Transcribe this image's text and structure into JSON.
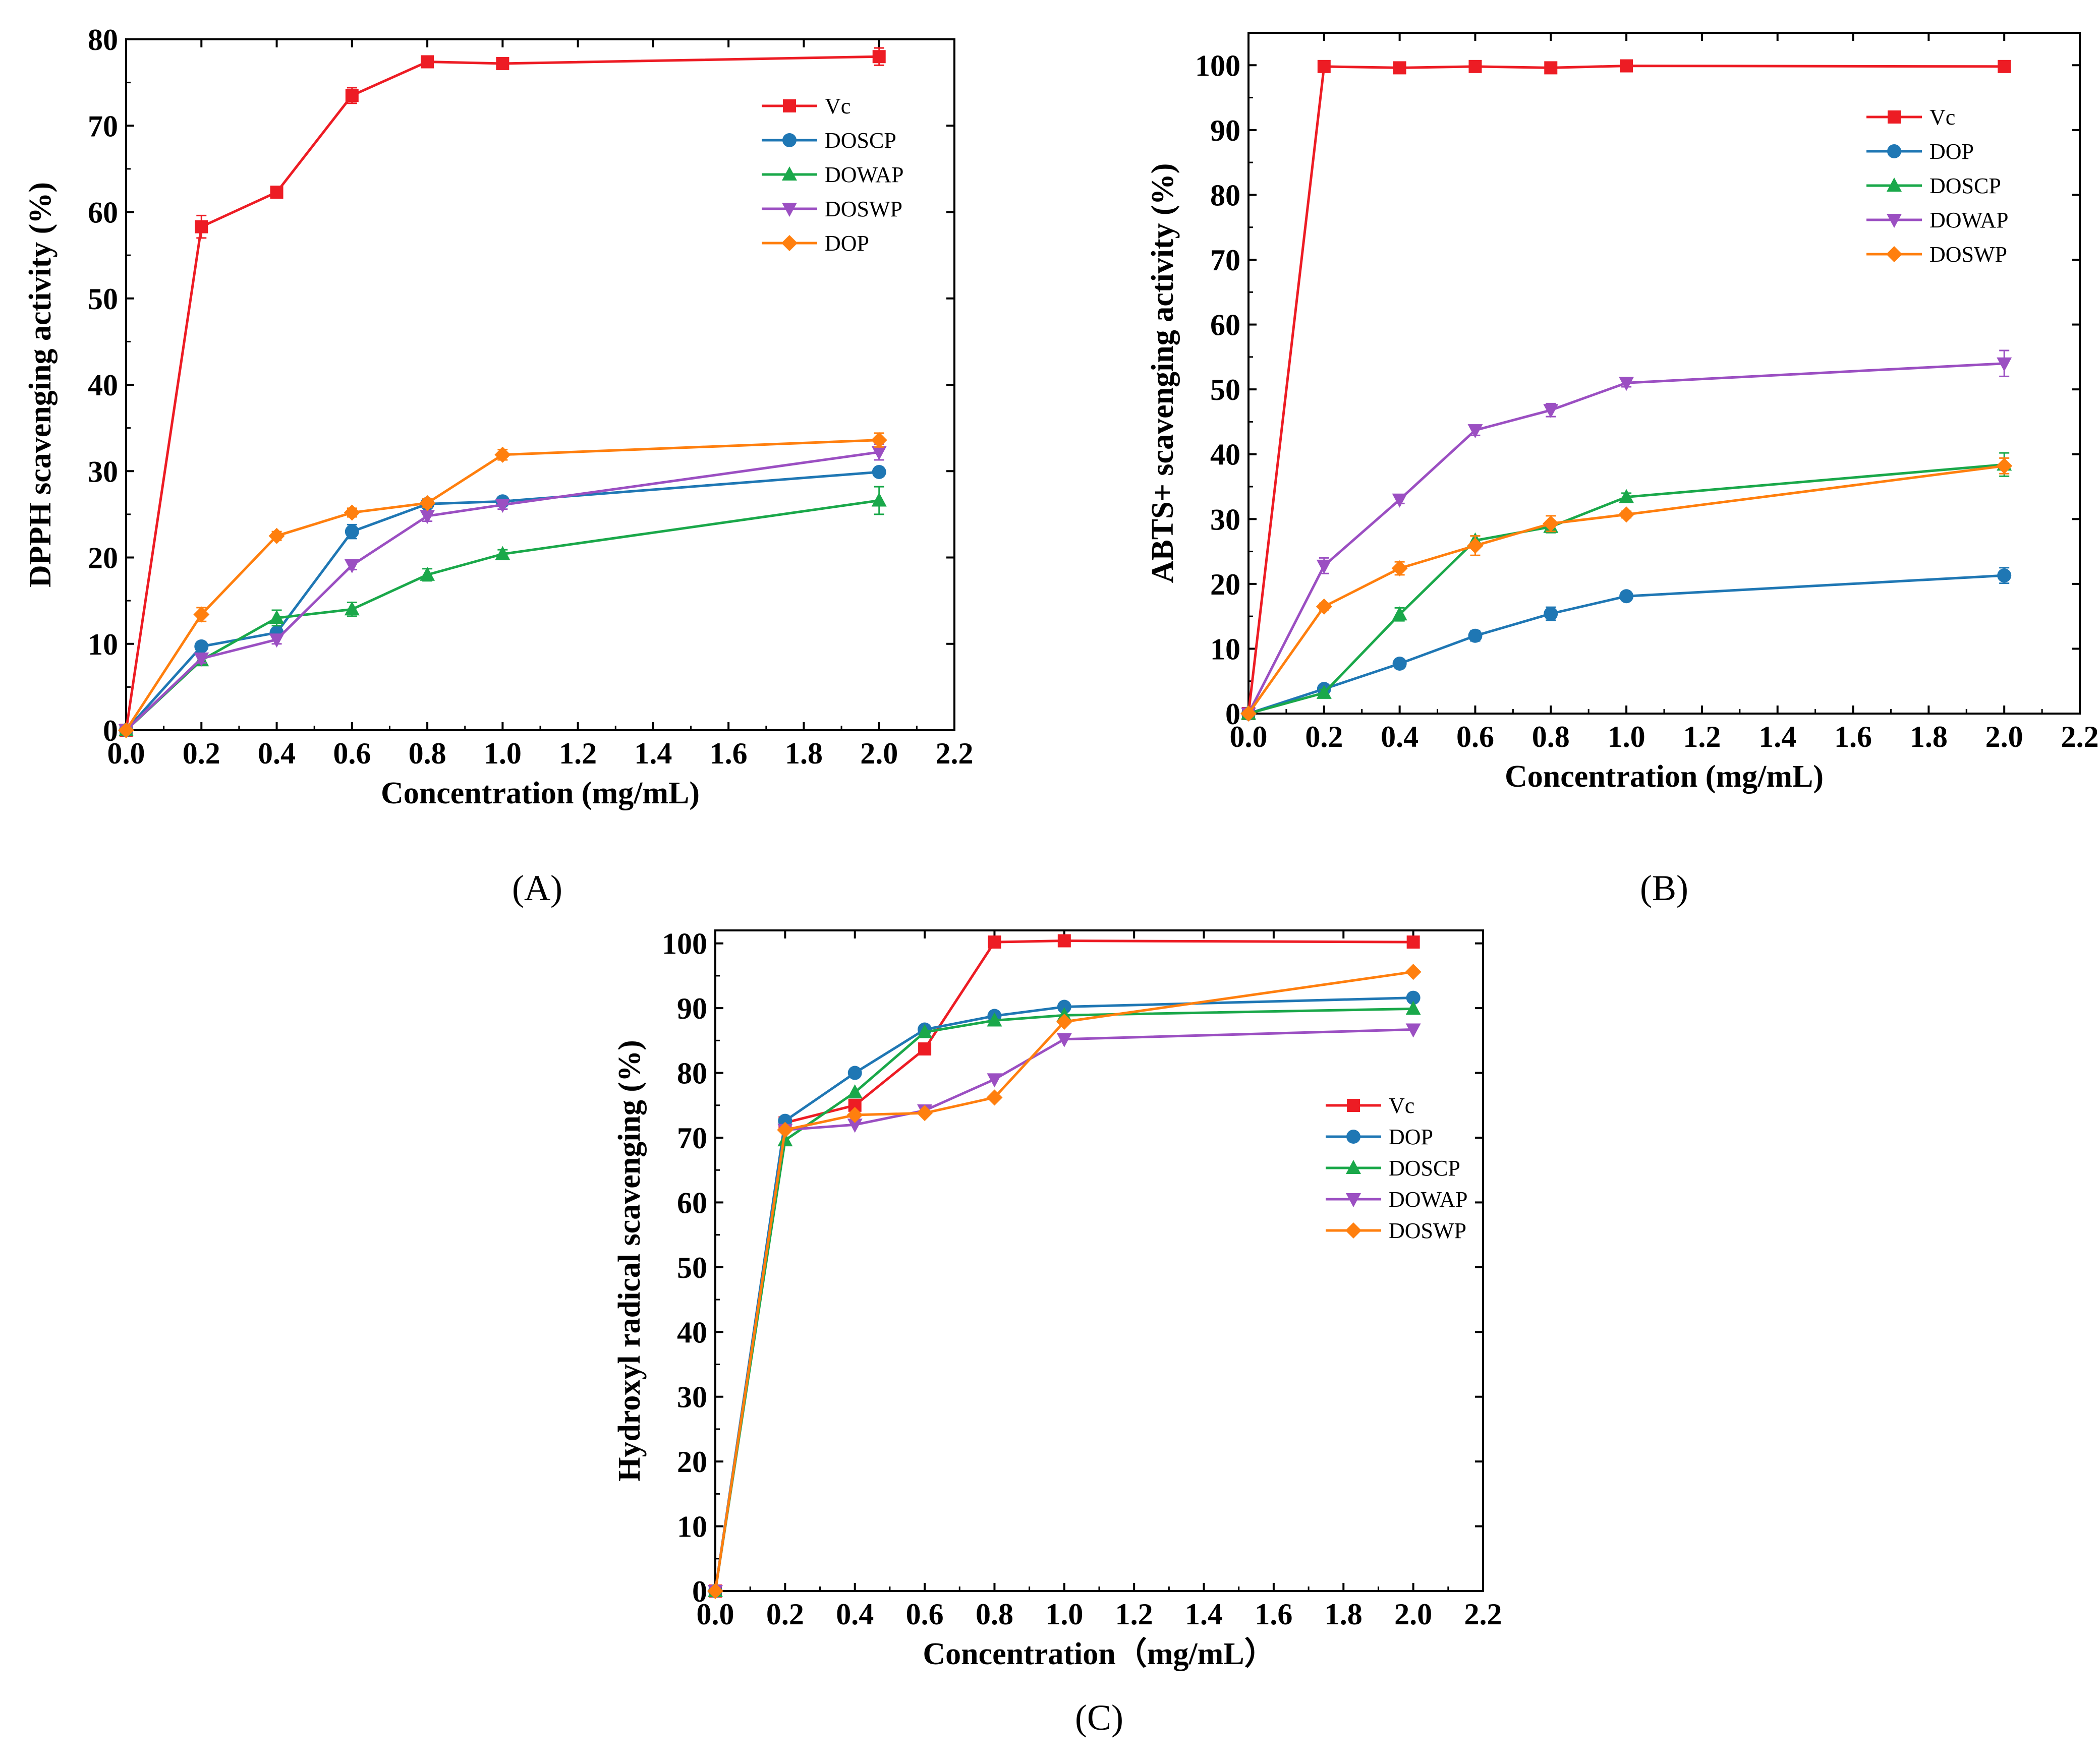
{
  "colors": {
    "red": "#ed1c24",
    "blue": "#1f77b4",
    "green": "#1aa84a",
    "purple": "#9b4fc2",
    "orange": "#ff7f0e"
  },
  "chart_data": [
    {
      "type": "line",
      "label": "(A)",
      "xlabel": "Concentration (mg/mL)",
      "ylabel": "DPPH scavenging activity (%)",
      "xlim": [
        0,
        2.2
      ],
      "ylim": [
        0,
        80
      ],
      "x_ticks": [
        "0.0",
        "0.2",
        "0.4",
        "0.6",
        "0.8",
        "1.0",
        "1.2",
        "1.4",
        "1.6",
        "1.8",
        "2.0",
        "2.2"
      ],
      "y_ticks": [
        "0",
        "10",
        "20",
        "30",
        "40",
        "50",
        "60",
        "70",
        "80"
      ],
      "x": [
        0,
        0.2,
        0.4,
        0.6,
        0.8,
        1.0,
        2.0
      ],
      "legend_position": "top-right",
      "series": [
        {
          "name": "Vc",
          "color": "red",
          "marker": "square",
          "values": [
            0,
            58.3,
            62.3,
            73.5,
            77.4,
            77.2,
            78.0
          ],
          "err": [
            0,
            1.3,
            0.4,
            0.9,
            0.3,
            0.3,
            1.0
          ]
        },
        {
          "name": "DOSCP",
          "color": "blue",
          "marker": "circle",
          "values": [
            0,
            9.7,
            11.3,
            23.0,
            26.2,
            26.5,
            29.9
          ],
          "err": [
            0,
            0.5,
            0.5,
            0.8,
            0.5,
            0.4,
            0.5
          ]
        },
        {
          "name": "DOWAP",
          "color": "green",
          "marker": "triangle-up",
          "values": [
            0,
            8.1,
            13.0,
            14.0,
            18.0,
            20.4,
            26.6
          ],
          "err": [
            0,
            0.5,
            0.9,
            0.8,
            0.7,
            0.5,
            1.6
          ]
        },
        {
          "name": "DOSWP",
          "color": "purple",
          "marker": "triangle-down",
          "values": [
            0,
            8.3,
            10.5,
            19.1,
            24.8,
            26.1,
            32.2
          ],
          "err": [
            0,
            0.5,
            0.5,
            0.5,
            0.6,
            0.5,
            0.9
          ]
        },
        {
          "name": "DOP",
          "color": "orange",
          "marker": "diamond",
          "values": [
            0,
            13.4,
            22.5,
            25.2,
            26.3,
            31.9,
            33.6
          ],
          "err": [
            0,
            0.8,
            0.5,
            0.5,
            0.5,
            0.6,
            0.8
          ]
        }
      ]
    },
    {
      "type": "line",
      "label": "(B)",
      "xlabel": "Concentration (mg/mL)",
      "ylabel": "ABTS+ scavenging activity (%)",
      "xlim": [
        0,
        2.2
      ],
      "ylim": [
        0,
        105
      ],
      "x_ticks": [
        "0.0",
        "0.2",
        "0.4",
        "0.6",
        "0.8",
        "1.0",
        "1.2",
        "1.4",
        "1.6",
        "1.8",
        "2.0",
        "2.2"
      ],
      "y_ticks": [
        "0",
        "10",
        "20",
        "30",
        "40",
        "50",
        "60",
        "70",
        "80",
        "90",
        "100"
      ],
      "x": [
        0,
        0.2,
        0.4,
        0.6,
        0.8,
        1.0,
        2.0
      ],
      "legend_position": "top-right",
      "series": [
        {
          "name": "Vc",
          "color": "red",
          "marker": "square",
          "values": [
            0,
            99.8,
            99.6,
            99.8,
            99.6,
            99.9,
            99.8
          ],
          "err": [
            0,
            0.8,
            0.3,
            0.3,
            0.3,
            0.2,
            0.3
          ]
        },
        {
          "name": "DOP",
          "color": "blue",
          "marker": "circle",
          "values": [
            0,
            3.8,
            7.7,
            12.0,
            15.4,
            18.1,
            21.3
          ],
          "err": [
            0,
            0.6,
            0.5,
            0.8,
            1.0,
            0.5,
            1.2
          ]
        },
        {
          "name": "DOSCP",
          "color": "green",
          "marker": "triangle-up",
          "values": [
            0,
            3.2,
            15.3,
            26.7,
            28.8,
            33.4,
            38.4
          ],
          "err": [
            0,
            0.5,
            1.0,
            0.7,
            0.9,
            0.6,
            1.8
          ]
        },
        {
          "name": "DOWAP",
          "color": "purple",
          "marker": "triangle-down",
          "values": [
            0,
            22.8,
            33.0,
            43.7,
            46.8,
            51.0,
            54.0
          ],
          "err": [
            0,
            1.2,
            0.6,
            0.8,
            1.0,
            0.6,
            2.0
          ]
        },
        {
          "name": "DOSWP",
          "color": "orange",
          "marker": "diamond",
          "values": [
            0,
            16.5,
            22.4,
            25.9,
            29.3,
            30.7,
            38.2
          ],
          "err": [
            0,
            0.5,
            1.0,
            1.5,
            1.2,
            0.5,
            1.2
          ]
        }
      ]
    },
    {
      "type": "line",
      "label": "(C)",
      "xlabel": "Concentration（mg/mL）",
      "ylabel": "Hydroxyl radical scavenging (%)",
      "xlim": [
        0,
        2.2
      ],
      "ylim": [
        0,
        102
      ],
      "x_ticks": [
        "0.0",
        "0.2",
        "0.4",
        "0.6",
        "0.8",
        "1.0",
        "1.2",
        "1.4",
        "1.6",
        "1.8",
        "2.0",
        "2.2"
      ],
      "y_ticks": [
        "0",
        "10",
        "20",
        "30",
        "40",
        "50",
        "60",
        "70",
        "80",
        "90",
        "100"
      ],
      "x": [
        0,
        0.2,
        0.4,
        0.6,
        0.8,
        1.0,
        2.0
      ],
      "legend_position": "center-right",
      "series": [
        {
          "name": "Vc",
          "color": "red",
          "marker": "square",
          "values": [
            0,
            72.3,
            75.0,
            83.7,
            100.2,
            100.4,
            100.2
          ],
          "err": [
            0,
            0,
            0,
            0,
            0,
            0,
            0
          ]
        },
        {
          "name": "DOP",
          "color": "blue",
          "marker": "circle",
          "values": [
            0,
            72.6,
            80.0,
            86.7,
            88.8,
            90.2,
            91.6
          ],
          "err": [
            0,
            0,
            0,
            0,
            0,
            0,
            0
          ]
        },
        {
          "name": "DOSCP",
          "color": "green",
          "marker": "triangle-up",
          "values": [
            0,
            69.6,
            77.0,
            86.3,
            88.1,
            88.9,
            89.9
          ],
          "err": [
            0,
            0,
            0,
            0,
            0,
            0,
            0
          ]
        },
        {
          "name": "DOWAP",
          "color": "purple",
          "marker": "triangle-down",
          "values": [
            0,
            71.2,
            72.0,
            74.2,
            79.0,
            85.2,
            86.7
          ],
          "err": [
            0,
            0,
            0,
            0,
            0,
            0,
            0
          ]
        },
        {
          "name": "DOSWP",
          "color": "orange",
          "marker": "diamond",
          "values": [
            0,
            71.2,
            73.5,
            73.8,
            76.2,
            87.9,
            95.6
          ],
          "err": [
            0,
            0,
            0,
            0,
            0,
            0,
            0
          ]
        }
      ]
    }
  ]
}
